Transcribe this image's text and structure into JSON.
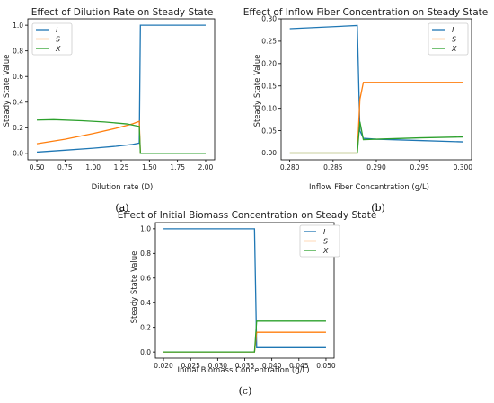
{
  "colors": {
    "I": "#1f77b4",
    "S": "#ff7f0e",
    "X": "#2ca02c"
  },
  "chart_data": [
    {
      "type": "line",
      "title": "Effect of Dilution Rate on Steady State",
      "xlabel": "Dilution rate (D)",
      "ylabel": "Steady State Value",
      "caption": "(a)",
      "xlim": [
        0.42,
        2.08
      ],
      "ylim": [
        -0.05,
        1.05
      ],
      "xticks": [
        0.5,
        0.75,
        1.0,
        1.25,
        1.5,
        1.75,
        2.0
      ],
      "xtick_labels": [
        "0.50",
        "0.75",
        "1.00",
        "1.25",
        "1.50",
        "1.75",
        "2.00"
      ],
      "yticks": [
        0.0,
        0.2,
        0.4,
        0.6,
        0.8,
        1.0
      ],
      "ytick_labels": [
        "0.0",
        "0.2",
        "0.4",
        "0.6",
        "0.8",
        "1.0"
      ],
      "legend": "top-left",
      "series": [
        {
          "name": "I",
          "x": [
            0.5,
            0.75,
            1.0,
            1.2,
            1.35,
            1.41,
            1.42,
            2.0
          ],
          "y": [
            0.01,
            0.025,
            0.04,
            0.055,
            0.07,
            0.08,
            1.0,
            1.0
          ]
        },
        {
          "name": "S",
          "x": [
            0.5,
            0.75,
            1.0,
            1.2,
            1.35,
            1.41,
            1.42,
            2.0
          ],
          "y": [
            0.075,
            0.11,
            0.155,
            0.195,
            0.23,
            0.25,
            0.0,
            0.0
          ]
        },
        {
          "name": "X",
          "x": [
            0.5,
            0.65,
            0.9,
            1.1,
            1.3,
            1.41,
            1.42,
            2.0
          ],
          "y": [
            0.26,
            0.263,
            0.255,
            0.245,
            0.23,
            0.21,
            0.0,
            0.0
          ]
        }
      ]
    },
    {
      "type": "line",
      "title": "Effect of Inflow Fiber Concentration on Steady State",
      "xlabel": "Inflow Fiber Concentration (g/L)",
      "ylabel": "Steady State Value",
      "caption": "(b)",
      "xlim": [
        0.279,
        0.301
      ],
      "ylim": [
        -0.015,
        0.3
      ],
      "xticks": [
        0.28,
        0.285,
        0.29,
        0.295,
        0.3
      ],
      "xtick_labels": [
        "0.280",
        "0.285",
        "0.290",
        "0.295",
        "0.300"
      ],
      "yticks": [
        0.0,
        0.05,
        0.1,
        0.15,
        0.2,
        0.25,
        0.3
      ],
      "ytick_labels": [
        "0.00",
        "0.05",
        "0.10",
        "0.15",
        "0.20",
        "0.25",
        "0.30"
      ],
      "legend": "top-right",
      "series": [
        {
          "name": "I",
          "x": [
            0.28,
            0.2878,
            0.2881,
            0.2885,
            0.29,
            0.295,
            0.3
          ],
          "y": [
            0.278,
            0.285,
            0.05,
            0.033,
            0.031,
            0.028,
            0.025
          ]
        },
        {
          "name": "S",
          "x": [
            0.28,
            0.2878,
            0.2881,
            0.2885,
            0.3
          ],
          "y": [
            0.0,
            0.0,
            0.12,
            0.158,
            0.158
          ]
        },
        {
          "name": "X",
          "x": [
            0.28,
            0.2878,
            0.2881,
            0.2885,
            0.29,
            0.295,
            0.3
          ],
          "y": [
            0.0,
            0.0,
            0.07,
            0.03,
            0.031,
            0.034,
            0.036
          ]
        }
      ]
    },
    {
      "type": "line",
      "title": "Effect of Initial Biomass Concentration on Steady State",
      "xlabel": "Initial Biomass Concentration (g/L)",
      "ylabel": "Steady State Value",
      "caption": "(c)",
      "xlim": [
        0.0185,
        0.0515
      ],
      "ylim": [
        -0.05,
        1.05
      ],
      "xticks": [
        0.02,
        0.025,
        0.03,
        0.035,
        0.04,
        0.045,
        0.05
      ],
      "xtick_labels": [
        "0.020",
        "0.025",
        "0.030",
        "0.035",
        "0.040",
        "0.045",
        "0.050"
      ],
      "yticks": [
        0.0,
        0.2,
        0.4,
        0.6,
        0.8,
        1.0
      ],
      "ytick_labels": [
        "0.0",
        "0.2",
        "0.4",
        "0.6",
        "0.8",
        "1.0"
      ],
      "legend": "top-right",
      "series": [
        {
          "name": "I",
          "x": [
            0.02,
            0.0368,
            0.0372,
            0.05
          ],
          "y": [
            1.0,
            1.0,
            0.035,
            0.035
          ]
        },
        {
          "name": "S",
          "x": [
            0.02,
            0.0368,
            0.0372,
            0.05
          ],
          "y": [
            0.0,
            0.0,
            0.16,
            0.16
          ]
        },
        {
          "name": "X",
          "x": [
            0.02,
            0.0368,
            0.0372,
            0.05
          ],
          "y": [
            0.0,
            0.0,
            0.25,
            0.25
          ]
        }
      ]
    }
  ]
}
